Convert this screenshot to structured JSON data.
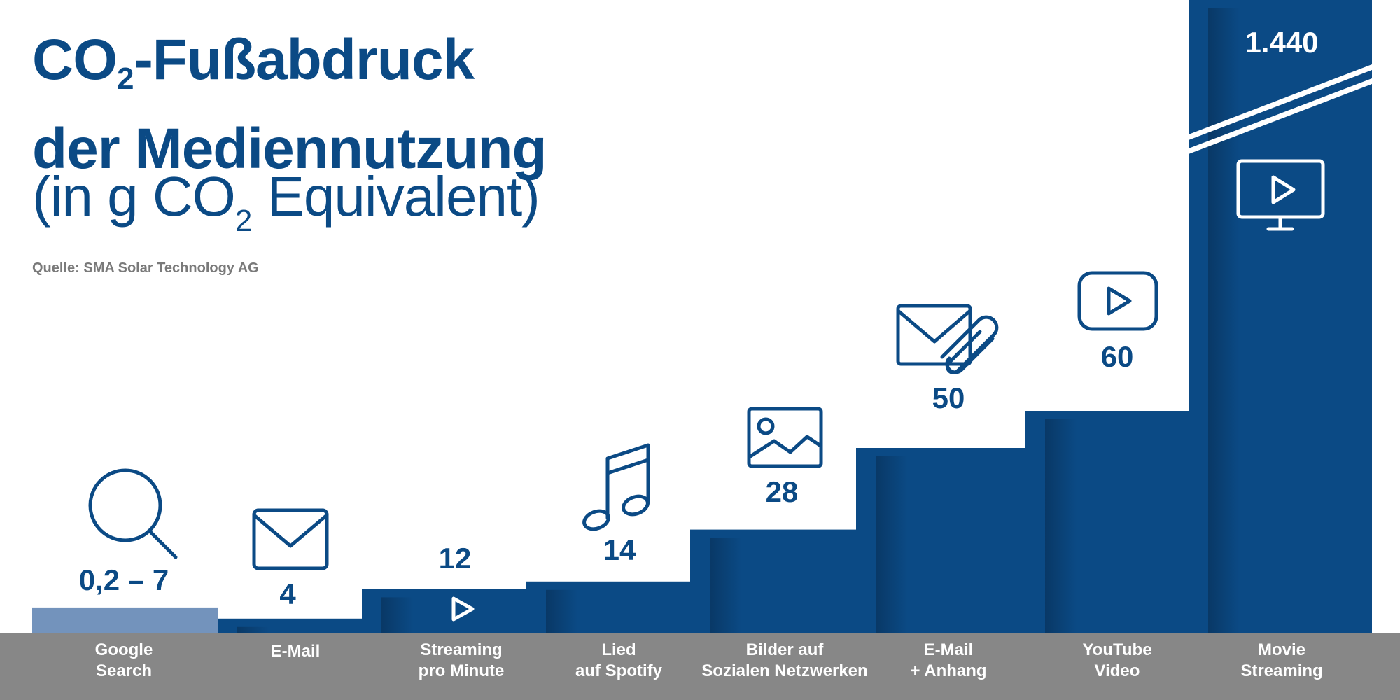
{
  "title": {
    "line1_pre": "CO",
    "line1_sub": "2",
    "line1_post": "-Fußabdruck",
    "line2": "der Mediennutzung",
    "unit_pre": "(in g CO",
    "unit_sub": "2",
    "unit_post": " Equivalent)"
  },
  "source": "Quelle: SMA Solar Technology AG",
  "colors": {
    "primary": "#0b4a85",
    "light_bar": "#7393bc",
    "axis_band": "#878787",
    "label_text": "#ffffff",
    "background": "#ffffff"
  },
  "chart_data": {
    "type": "bar",
    "title": "CO2-Fußabdruck der Mediennutzung",
    "ylabel": "in g CO2 Equivalent",
    "axis_break": true,
    "categories": [
      "Google Search",
      "E-Mail",
      "Streaming pro Minute",
      "Lied auf Spotify",
      "Bilder auf Sozialen Netzwerken",
      "E-Mail + Anhang",
      "YouTube Video",
      "Movie Streaming"
    ],
    "category_lines": [
      [
        "Google",
        "Search"
      ],
      [
        "E-Mail"
      ],
      [
        "Streaming",
        "pro Minute"
      ],
      [
        "Lied",
        "auf Spotify"
      ],
      [
        "Bilder auf",
        "Sozialen Netzwerken"
      ],
      [
        "E-Mail",
        "+ Anhang"
      ],
      [
        "YouTube",
        "Video"
      ],
      [
        "Movie",
        "Streaming"
      ]
    ],
    "values": [
      7,
      4,
      12,
      14,
      28,
      50,
      60,
      1440
    ],
    "value_labels": [
      "0,2 – 7",
      "4",
      "12",
      "14",
      "28",
      "50",
      "60",
      "1.440"
    ],
    "icons": [
      "search-icon",
      "mail-icon",
      "play-icon",
      "music-note-icon",
      "image-icon",
      "mail-attachment-icon",
      "youtube-play-icon",
      "monitor-play-icon"
    ]
  }
}
